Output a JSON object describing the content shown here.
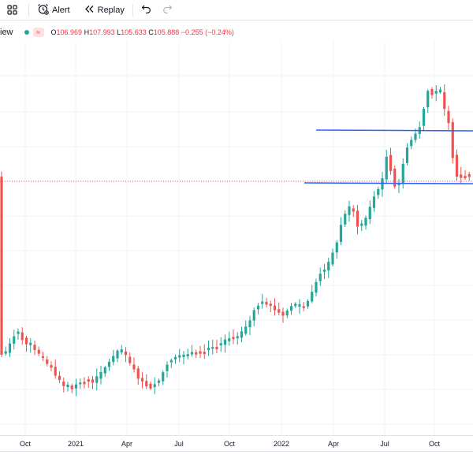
{
  "toolbar": {
    "alert_label": "Alert",
    "replay_label": "Replay"
  },
  "legend": {
    "symbol_fragment": "iew",
    "open_label": "O",
    "open": "106.969",
    "high_label": "H",
    "high": "107.993",
    "low_label": "L",
    "low": "105.633",
    "close_label": "C",
    "close": "105.888",
    "change": "−0.255 (−0.24%)"
  },
  "colors": {
    "up": "#26a69a",
    "down": "#ef5350",
    "trendline": "#2962ff",
    "last_price_line": "#ef5350",
    "grid": "#f0f3fa"
  },
  "x_axis": {
    "labels": [
      "Oct",
      "2021",
      "Apr",
      "Jul",
      "Oct",
      "2022",
      "Apr",
      "Jul",
      "Oct"
    ]
  },
  "chart_data": {
    "type": "candlestick",
    "interval": "1W",
    "last_close": 105.888,
    "candles_count": 114,
    "horizontal_lines": [
      {
        "name": "resistance",
        "approx_price": 111.0
      },
      {
        "name": "support",
        "approx_price": 105.5
      }
    ]
  }
}
